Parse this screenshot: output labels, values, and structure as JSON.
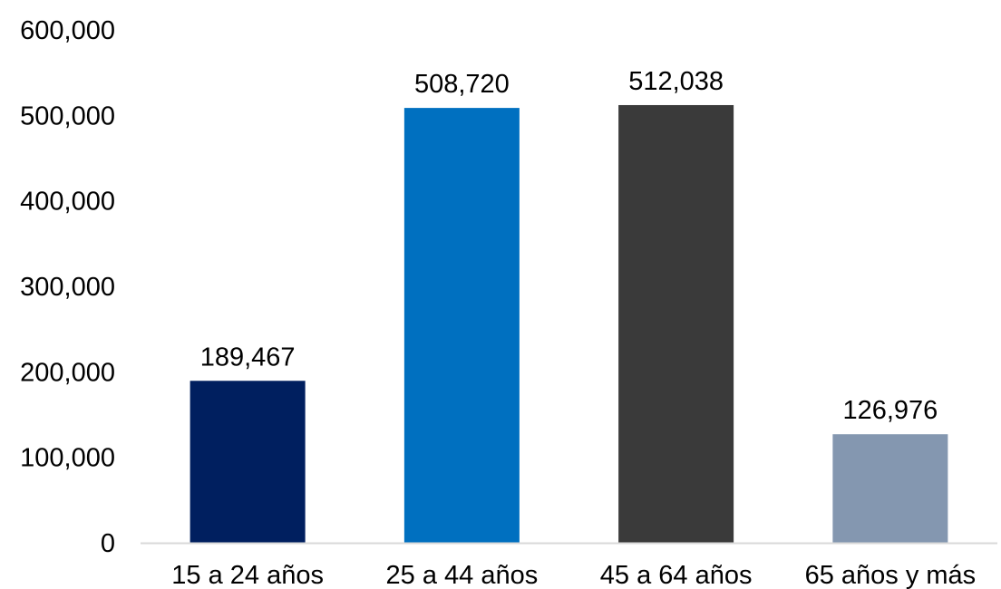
{
  "chart_data": {
    "type": "bar",
    "title": "",
    "xlabel": "",
    "ylabel": "",
    "categories": [
      "15 a 24 años",
      "25 a 44 años",
      "45 a 64 años",
      "65 años y más"
    ],
    "values": [
      189467,
      508720,
      512038,
      126976
    ],
    "value_labels": [
      "189,467",
      "508,720",
      "512,038",
      "126,976"
    ],
    "colors": [
      "#001f5f",
      "#0070c0",
      "#3a3a3a",
      "#8497b0"
    ],
    "ylim": [
      0,
      600000
    ],
    "yticks": [
      0,
      100000,
      200000,
      300000,
      400000,
      500000,
      600000
    ],
    "ytick_labels": [
      "0",
      "100,000",
      "200,000",
      "300,000",
      "400,000",
      "500,000",
      "600,000"
    ],
    "grid": false,
    "legend": "none",
    "axis_color": "#d9d9d9"
  }
}
